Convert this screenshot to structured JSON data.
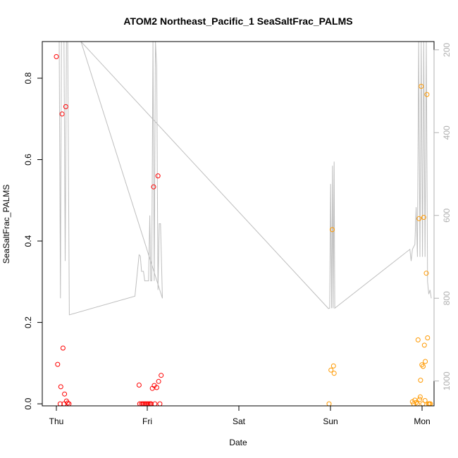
{
  "chart_data": {
    "type": "scatter",
    "title": "ATOM2 Northeast_Pacific_1 SeaSaltFrac_PALMS",
    "xlabel": "Date",
    "ylabel": "SeaSaltFrac_PALMS",
    "x_ticks": [
      "Thu",
      "Fri",
      "Sat",
      "Sun",
      "Mon"
    ],
    "y_ticks": [
      "0.0",
      "0.2",
      "0.4",
      "0.6",
      "0.8"
    ],
    "y2_ticks": [
      "200",
      "400",
      "600",
      "800",
      "1000"
    ],
    "ylim": [
      -0.005,
      0.89
    ],
    "y2lim": [
      1060,
      180
    ],
    "grid": false,
    "colors": {
      "series_red": "#ff0000",
      "series_orange": "#ff9900",
      "altitude_line": "#bebebe"
    },
    "series": [
      {
        "color": "red",
        "points": [
          [
            "Thu 00:00",
            0.853
          ],
          [
            "Thu 00:20",
            0.097
          ],
          [
            "Thu 01:00",
            0.0
          ],
          [
            "Thu 01:10",
            0.042
          ],
          [
            "Thu 01:30",
            0.712
          ],
          [
            "Thu 01:45",
            0.137
          ],
          [
            "Thu 02:00",
            0.0
          ],
          [
            "Thu 02:10",
            0.024
          ],
          [
            "Thu 02:30",
            0.73
          ],
          [
            "Thu 02:40",
            0.007
          ],
          [
            "Thu 03:00",
            0.002
          ],
          [
            "Thu 03:20",
            0.0
          ],
          [
            "Thu 21:50",
            0.046
          ],
          [
            "Thu 22:00",
            0.0
          ],
          [
            "Thu 22:30",
            0.0
          ],
          [
            "Thu 22:50",
            0.0
          ],
          [
            "Thu 23:10",
            0.0
          ],
          [
            "Thu 23:30",
            0.0
          ],
          [
            "Thu 23:50",
            0.0
          ],
          [
            "Fri 00:10",
            0.0
          ],
          [
            "Fri 00:30",
            0.0
          ],
          [
            "Fri 00:50",
            0.0
          ],
          [
            "Fri 01:00",
            0.0
          ],
          [
            "Fri 01:20",
            0.038
          ],
          [
            "Fri 01:40",
            0.533
          ],
          [
            "Fri 01:50",
            0.045
          ],
          [
            "Fri 02:00",
            0.0
          ],
          [
            "Fri 02:30",
            0.04
          ],
          [
            "Fri 02:50",
            0.56
          ],
          [
            "Fri 03:00",
            0.055
          ],
          [
            "Fri 03:20",
            0.0
          ],
          [
            "Fri 03:40",
            0.07
          ]
        ]
      },
      {
        "color": "orange",
        "points": [
          [
            "Sun 00:00",
            0.0
          ],
          [
            "Sun 00:30",
            0.083
          ],
          [
            "Sun 00:50",
            0.428
          ],
          [
            "Sun 01:10",
            0.093
          ],
          [
            "Sun 01:20",
            0.075
          ],
          [
            "Sun 22:00",
            0.005
          ],
          [
            "Sun 22:20",
            0.0
          ],
          [
            "Sun 22:40",
            0.009
          ],
          [
            "Sun 23:00",
            0.003
          ],
          [
            "Sun 23:20",
            0.0
          ],
          [
            "Sun 23:30",
            0.157
          ],
          [
            "Sun 23:45",
            0.455
          ],
          [
            "Sun 23:55",
            0.011
          ],
          [
            "Mon 00:05",
            0.017
          ],
          [
            "Mon 00:10",
            0.058
          ],
          [
            "Mon 00:20",
            0.78
          ],
          [
            "Mon 00:30",
            0.096
          ],
          [
            "Mon 00:45",
            0.0
          ],
          [
            "Mon 00:50",
            0.092
          ],
          [
            "Mon 01:00",
            0.458
          ],
          [
            "Mon 01:10",
            0.144
          ],
          [
            "Mon 01:20",
            0.008
          ],
          [
            "Mon 01:25",
            0.104
          ],
          [
            "Mon 01:40",
            0.321
          ],
          [
            "Mon 01:50",
            0.76
          ],
          [
            "Mon 02:00",
            0.162
          ],
          [
            "Mon 02:15",
            0.0
          ],
          [
            "Mon 02:30",
            0.0
          ],
          [
            "Mon 02:45",
            0.0
          ]
        ]
      }
    ],
    "altitude": [
      [
        "Thu 00:00",
        180
      ],
      [
        "Thu 00:45",
        180
      ],
      [
        "Thu 01:05",
        800
      ],
      [
        "Thu 01:20",
        180
      ],
      [
        "Thu 02:00",
        180
      ],
      [
        "Thu 02:20",
        710
      ],
      [
        "Thu 02:40",
        180
      ],
      [
        "Thu 03:00",
        180
      ],
      [
        "Thu 03:25",
        840
      ],
      [
        "Thu 20:45",
        795
      ],
      [
        "Thu 21:50",
        695
      ],
      [
        "Thu 22:10",
        698
      ],
      [
        "Thu 22:30",
        735
      ],
      [
        "Thu 23:00",
        735
      ],
      [
        "Thu 23:20",
        758
      ],
      [
        "Thu 23:40",
        758
      ],
      [
        "Thu 23:55",
        758
      ],
      [
        "Fri 00:20",
        758
      ],
      [
        "Fri 00:40",
        600
      ],
      [
        "Fri 00:55",
        758
      ],
      [
        "Fri 01:10",
        758
      ],
      [
        "Fri 01:30",
        180
      ],
      [
        "Fri 01:50",
        758
      ],
      [
        "Fri 02:10",
        180
      ],
      [
        "Fri 02:30",
        240
      ],
      [
        "Fri 02:50",
        780
      ],
      [
        "Fri 03:10",
        620
      ],
      [
        "Fri 03:30",
        620
      ],
      [
        "Fri 04:00",
        800
      ],
      [
        "Thu 06:30",
        180
      ],
      [
        "Sat 23:50",
        825
      ],
      [
        "Sun 00:10",
        824
      ],
      [
        "Sun 00:25",
        524
      ],
      [
        "Sun 00:40",
        824
      ],
      [
        "Sun 00:55",
        480
      ],
      [
        "Sun 01:05",
        824
      ],
      [
        "Sun 01:20",
        470
      ],
      [
        "Sun 01:30",
        824
      ],
      [
        "Sun 21:20",
        682
      ],
      [
        "Sun 21:40",
        710
      ],
      [
        "Sun 22:00",
        682
      ],
      [
        "Sun 22:40",
        670
      ],
      [
        "Sun 23:00",
        580
      ],
      [
        "Sun 23:20",
        700
      ],
      [
        "Sun 23:40",
        180
      ],
      [
        "Mon 00:00",
        700
      ],
      [
        "Mon 00:20",
        180
      ],
      [
        "Mon 00:40",
        700
      ],
      [
        "Mon 01:00",
        180
      ],
      [
        "Mon 01:20",
        700
      ],
      [
        "Mon 01:40",
        180
      ],
      [
        "Mon 02:00",
        760
      ],
      [
        "Mon 02:20",
        790
      ],
      [
        "Mon 02:40",
        780
      ],
      [
        "Mon 03:00",
        800
      ]
    ]
  }
}
